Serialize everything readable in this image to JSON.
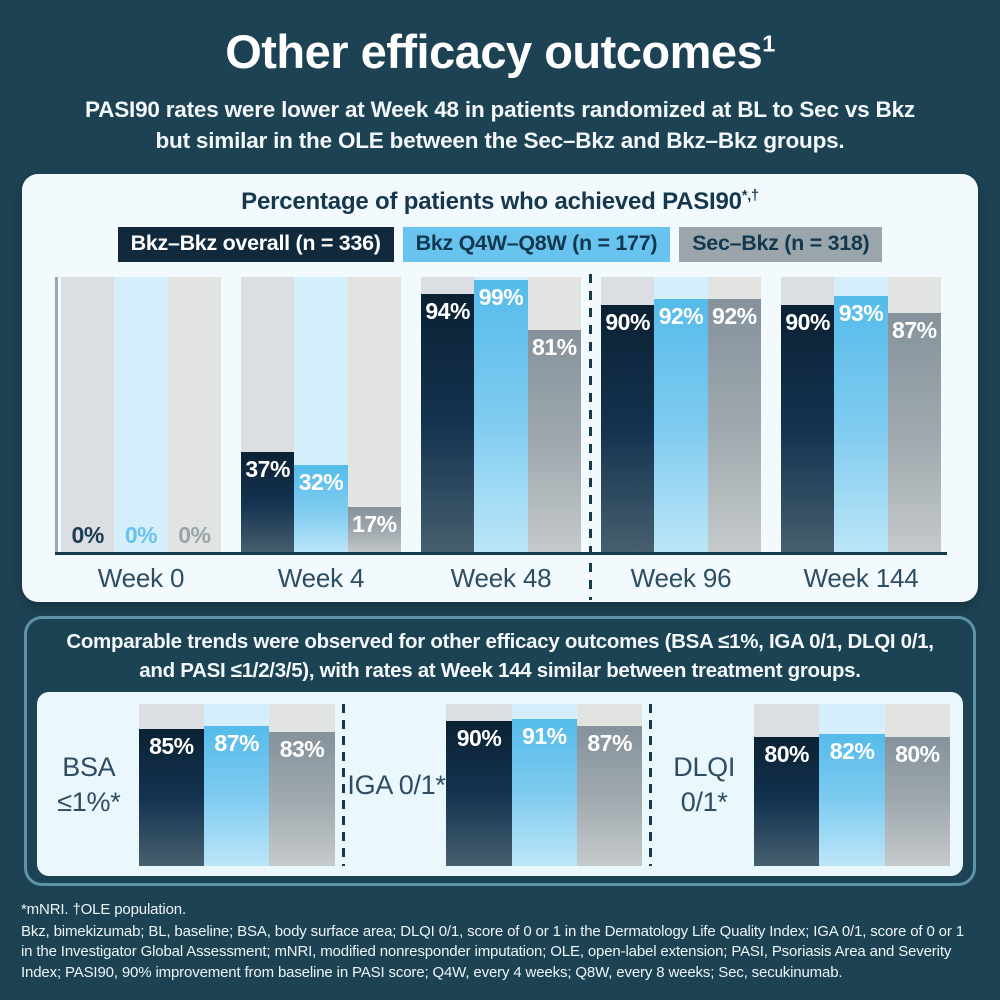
{
  "page": {
    "background_color": "#1D4253",
    "title": "Other efficacy outcomes",
    "title_sup": "1",
    "subtitle_line1": "PASI90 rates were lower at Week 48 in patients randomized at BL to Sec vs Bkz",
    "subtitle_line2": "but similar in the OLE between the Sec–Bkz and Bkz–Bkz groups."
  },
  "chart_data": [
    {
      "type": "bar",
      "title_main": "Percentage of patients who achieved PASI90",
      "title_sup": "*,†",
      "categories": [
        "Week 0",
        "Week 4",
        "Week 48",
        "Week 96",
        "Week 144"
      ],
      "series": [
        {
          "name": "Bkz–Bkz overall (n = 336)",
          "values": [
            0,
            37,
            94,
            90,
            90
          ],
          "bar_gradient": [
            "#0A2133",
            "#143350",
            "#47606F"
          ],
          "track_color": "#DBDEE3",
          "zero_label_color": "#1B3C52",
          "legend_bg": "#10293C",
          "legend_text": "#FFFFFF"
        },
        {
          "name": "Bkz Q4W–Q8W (n = 177)",
          "values": [
            0,
            32,
            99,
            92,
            93
          ],
          "bar_gradient": [
            "#55BBEA",
            "#7ECBF0",
            "#BCE6F8"
          ],
          "track_color": "#D5EEFB",
          "zero_label_color": "#6CC2EE",
          "legend_bg": "#69C3EF",
          "legend_text": "#123850"
        },
        {
          "name": "Sec–Bkz (n = 318)",
          "values": [
            0,
            17,
            81,
            92,
            87
          ],
          "bar_gradient": [
            "#85929C",
            "#9FA8AE",
            "#C5CACB"
          ],
          "track_color": "#E2E4E2",
          "zero_label_color": "#99A4AB",
          "legend_bg": "#9BA6AC",
          "legend_text": "#123850"
        }
      ],
      "value_suffix": "%",
      "ylim": [
        0,
        100
      ],
      "grid": false,
      "legend_position": "top",
      "divider_between": [
        "Week 48",
        "Week 96"
      ]
    },
    {
      "type": "bar",
      "note_line1": "Comparable trends were observed for other efficacy outcomes (BSA ≤1%, IGA 0/1, DLQI 0/1,",
      "note_line2": "and PASI ≤1/2/3/5), with rates at Week 144 similar between treatment groups.",
      "value_suffix": "%",
      "ylim": [
        0,
        100
      ],
      "series_names": [
        "Bkz–Bkz overall (n = 336)",
        "Bkz Q4W–Q8W (n = 177)",
        "Sec–Bkz (n = 318)"
      ],
      "groups": [
        {
          "label": "BSA ≤1%*",
          "label_lines": [
            "BSA",
            "≤1%*"
          ],
          "values": [
            85,
            87,
            83
          ]
        },
        {
          "label": "IGA 0/1*",
          "label_lines": [
            "IGA 0/1*"
          ],
          "values": [
            90,
            91,
            87
          ]
        },
        {
          "label": "DLQI 0/1*",
          "label_lines": [
            "DLQI 0/1*"
          ],
          "values": [
            80,
            82,
            80
          ]
        }
      ]
    }
  ],
  "footnotes": {
    "line1": "*mNRI. †OLE population.",
    "abbreviations": "Bkz, bimekizumab; BL, baseline; BSA, body surface area; DLQI 0/1, score of 0 or 1 in the Dermatology Life Quality Index; IGA 0/1, score of 0 or 1 in the Investigator Global Assessment; mNRI, modified nonresponder imputation; OLE, open-label extension; PASI, Psoriasis Area and Severity Index; PASI90, 90% improvement from baseline in PASI score; Q4W, every 4 weeks; Q8W, every 8 weeks; Sec, secukinumab."
  },
  "colors": {
    "card_bg": "#F3FAFD",
    "panel_bg": "#EAF7FD",
    "card2_border": "#5E93A8",
    "divider": "#17394D",
    "axis": "#9AA8B1",
    "week_label": "#2E4D63",
    "chart_title": "#16384E"
  }
}
